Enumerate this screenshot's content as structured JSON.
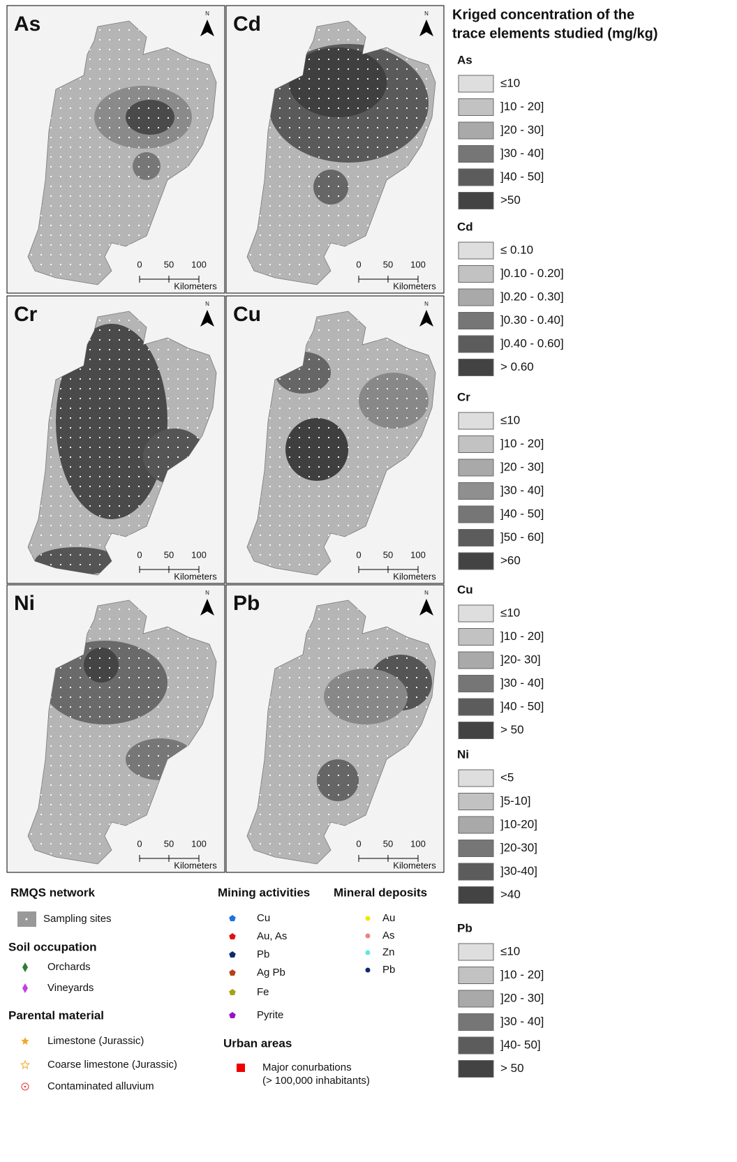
{
  "panels": [
    {
      "label": "As"
    },
    {
      "label": "Cd"
    },
    {
      "label": "Cr"
    },
    {
      "label": "Cu"
    },
    {
      "label": "Ni"
    },
    {
      "label": "Pb"
    }
  ],
  "north": "N",
  "scale_bar": {
    "ticks": [
      "0",
      "50",
      "100"
    ],
    "unit": "Kilometers"
  },
  "legend": {
    "title_lines": [
      "Kriged concentration of the",
      "trace elements studied (mg/kg)"
    ],
    "groups": [
      {
        "name": "As",
        "classes": [
          "≤10",
          "]10 - 20]",
          "]20 - 30]",
          "]30 - 40]",
          "]40 - 50]",
          ">50"
        ]
      },
      {
        "name": "Cd",
        "classes": [
          "≤ 0.10",
          "]0.10 - 0.20]",
          "]0.20 - 0.30]",
          "]0.30 - 0.40]",
          "]0.40 - 0.60]",
          "> 0.60"
        ]
      },
      {
        "name": "Cr",
        "classes": [
          "≤10",
          "]10 - 20]",
          "]20 - 30]",
          "]30 - 40]",
          "]40 - 50]",
          "]50 - 60]",
          ">60"
        ]
      },
      {
        "name": "Cu",
        "classes": [
          "≤10",
          "]10 - 20]",
          "]20- 30]",
          "]30 - 40]",
          "]40 - 50]",
          "> 50"
        ]
      },
      {
        "name": "Ni",
        "classes": [
          "<5",
          "]5-10]",
          "]10-20]",
          "]20-30]",
          "]30-40]",
          ">40"
        ]
      },
      {
        "name": "Pb",
        "classes": [
          "≤10",
          "]10 - 20]",
          "]20 - 30]",
          "]30 - 40]",
          "]40- 50]",
          "> 50"
        ]
      }
    ]
  },
  "key": [
    {
      "title": "RMQS network",
      "items": [
        "Sampling sites"
      ]
    },
    {
      "title": "Soil occupation",
      "items": [
        "Orchards",
        "Vineyards"
      ]
    },
    {
      "title": "Parental material",
      "items": [
        "Limestone (Jurassic)",
        "Coarse limestone (Jurassic)",
        "Contaminated alluvium"
      ]
    },
    {
      "title": "Mining activities",
      "items": [
        "Cu",
        "Au, As",
        "Pb",
        "Ag Pb",
        "Fe",
        "Pyrite"
      ]
    },
    {
      "title": "Mineral deposits",
      "items": [
        "Au",
        "As",
        "Zn",
        "Pb"
      ]
    },
    {
      "title": "Urban areas",
      "items": [
        "Major conurbations",
        "(> 100,000 inhabitants)"
      ]
    }
  ]
}
